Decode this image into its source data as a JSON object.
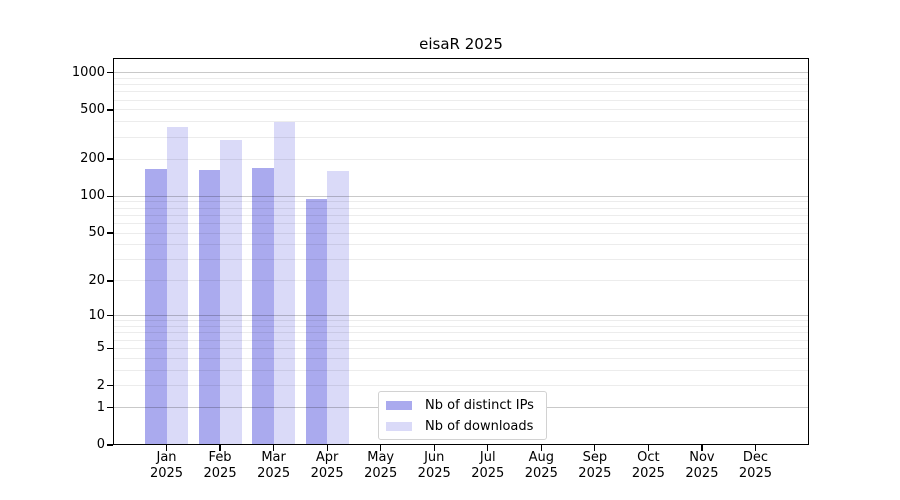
{
  "chart_data": {
    "type": "bar",
    "title": "eisaR 2025",
    "categories": [
      "Jan",
      "Feb",
      "Mar",
      "Apr",
      "May",
      "Jun",
      "Jul",
      "Aug",
      "Sep",
      "Oct",
      "Nov",
      "Dec"
    ],
    "year_label": "2025",
    "series": [
      {
        "name": "Nb of distinct IPs",
        "color": "#aaaaee",
        "values": [
          167,
          164,
          168,
          95,
          0,
          0,
          0,
          0,
          0,
          0,
          0,
          0
        ]
      },
      {
        "name": "Nb of downloads",
        "color": "#dadaf8",
        "values": [
          362,
          288,
          399,
          160,
          0,
          0,
          0,
          0,
          0,
          0,
          0,
          0
        ]
      }
    ],
    "xlabel": "",
    "ylabel": "",
    "yscale": "log1p",
    "yticks": [
      0,
      1,
      2,
      5,
      10,
      20,
      50,
      100,
      200,
      500,
      1000
    ],
    "ylim": [
      0,
      1310
    ],
    "grid": "horizontal major (decades) + minor (2-9 per decade)",
    "legend_position": "lower center, inside axes",
    "colors": {
      "major_grid": "#c9c9c9",
      "minor_grid": "#ebebeb",
      "axis": "#000000",
      "text": "#000000",
      "background": "#ffffff"
    }
  }
}
